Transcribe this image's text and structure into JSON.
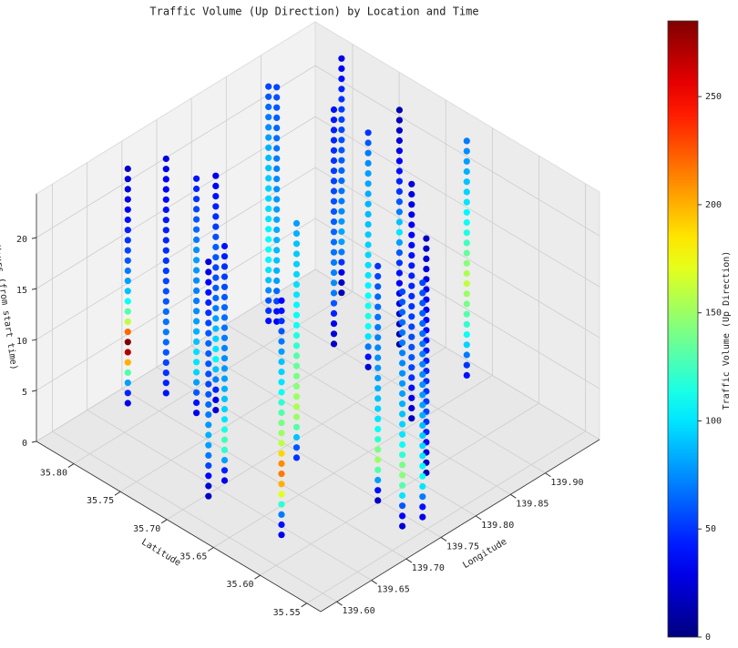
{
  "chart_data": {
    "type": "scatter3d",
    "title": "Traffic Volume (Up Direction) by Location and Time",
    "xlabel": "Longitude",
    "ylabel": "Latitude",
    "zlabel": "Hours (from start time)",
    "xlim": [
      139.577,
      139.978
    ],
    "ylim": [
      35.535,
      35.84
    ],
    "zlim": [
      0,
      24.3
    ],
    "xticks": [
      {
        "value": 139.6,
        "label": "139.60"
      },
      139.65,
      {
        "value": 139.7,
        "label": "139.70"
      },
      139.75,
      {
        "value": 139.8,
        "label": "139.80"
      },
      139.85,
      {
        "value": 139.9,
        "label": "139.90"
      }
    ],
    "yticks": [
      35.55,
      {
        "value": 35.6,
        "label": "35.60"
      },
      35.65,
      {
        "value": 35.7,
        "label": "35.70"
      },
      35.75,
      {
        "value": 35.8,
        "label": "35.80"
      }
    ],
    "zticks": [
      0,
      5,
      10,
      15,
      20
    ],
    "grid": true,
    "hours": [
      0,
      1,
      2,
      3,
      4,
      5,
      6,
      7,
      8,
      9,
      10,
      11,
      12,
      13,
      14,
      15,
      16,
      17,
      18,
      19,
      20,
      21,
      22,
      23
    ],
    "locations": [
      {
        "lon": 139.687,
        "lat": 35.824,
        "values": [
          30,
          45,
          80,
          130,
          200,
          270,
          285,
          220,
          160,
          130,
          110,
          90,
          80,
          70,
          60,
          55,
          50,
          45,
          40,
          35,
          30,
          28,
          25,
          20
        ]
      },
      {
        "lon": 139.726,
        "lat": 35.812,
        "values": [
          40,
          45,
          50,
          55,
          60,
          65,
          70,
          68,
          66,
          60,
          58,
          55,
          52,
          50,
          48,
          46,
          44,
          42,
          40,
          38,
          35,
          33,
          30,
          28
        ]
      },
      {
        "lon": 139.724,
        "lat": 35.778,
        "values": [
          30,
          40,
          60,
          80,
          95,
          100,
          98,
          90,
          85,
          80,
          75,
          70,
          72,
          75,
          78,
          80,
          76,
          70,
          65,
          60,
          55,
          50,
          45,
          40
        ]
      },
      {
        "lon": 139.741,
        "lat": 35.77,
        "values": [
          25,
          30,
          45,
          70,
          90,
          105,
          100,
          95,
          88,
          80,
          70,
          65,
          60,
          58,
          55,
          60,
          62,
          58,
          52,
          48,
          44,
          40,
          35,
          30
        ]
      },
      {
        "lon": 139.634,
        "lat": 35.698,
        "values": [
          20,
          25,
          35,
          55,
          70,
          80,
          85,
          78,
          70,
          65,
          60,
          55,
          58,
          60,
          62,
          64,
          60,
          55,
          50,
          45,
          40,
          35,
          30,
          25
        ]
      },
      {
        "lon": 139.664,
        "lat": 35.703,
        "values": [
          30,
          45,
          80,
          120,
          125,
          115,
          100,
          95,
          90,
          85,
          80,
          78,
          75,
          72,
          70,
          68,
          66,
          64,
          60,
          56,
          52,
          48,
          44,
          40
        ]
      },
      {
        "lon": 139.884,
        "lat": 35.82,
        "values": [
          40,
          50,
          60,
          75,
          90,
          100,
          105,
          110,
          108,
          105,
          100,
          98,
          96,
          94,
          92,
          90,
          88,
          85,
          80,
          75,
          70,
          65,
          60,
          55
        ]
      },
      {
        "lon": 139.889,
        "lat": 35.815,
        "values": [
          35,
          40,
          55,
          65,
          80,
          85,
          90,
          88,
          86,
          84,
          82,
          80,
          78,
          76,
          74,
          72,
          70,
          68,
          66,
          64,
          62,
          60,
          58,
          55
        ]
      },
      {
        "lon": 139.64,
        "lat": 35.624,
        "values": [
          30,
          40,
          70,
          120,
          170,
          200,
          215,
          210,
          190,
          160,
          150,
          140,
          130,
          120,
          110,
          100,
          95,
          90,
          80,
          70,
          60,
          50,
          40,
          35
        ]
      },
      {
        "lon": 139.742,
        "lat": 35.684,
        "values": [
          50,
          60,
          90,
          130,
          150,
          155,
          150,
          145,
          140,
          135,
          130,
          120,
          115,
          110,
          108,
          105,
          100,
          98,
          96,
          94,
          92,
          90,
          85,
          80
        ]
      },
      {
        "lon": 139.903,
        "lat": 35.764,
        "values": [
          20,
          25,
          30,
          45,
          60,
          70,
          75,
          72,
          70,
          68,
          66,
          64,
          62,
          60,
          58,
          56,
          54,
          52,
          50,
          48,
          46,
          44,
          42,
          40
        ]
      },
      {
        "lon": 139.969,
        "lat": 35.805,
        "values": [
          15,
          20,
          30,
          50,
          70,
          80,
          82,
          78,
          74,
          70,
          68,
          66,
          64,
          62,
          60,
          58,
          56,
          54,
          52,
          50,
          45,
          40,
          35,
          30
        ]
      },
      {
        "lon": 139.9,
        "lat": 35.725,
        "values": [
          25,
          40,
          70,
          100,
          110,
          115,
          112,
          108,
          104,
          100,
          98,
          96,
          94,
          92,
          90,
          88,
          86,
          84,
          82,
          80,
          75,
          70,
          60,
          50
        ]
      },
      {
        "lon": 139.749,
        "lat": 35.602,
        "values": [
          20,
          40,
          80,
          130,
          150,
          140,
          120,
          110,
          100,
          95,
          90,
          85,
          80,
          78,
          76,
          74,
          72,
          70,
          68,
          66,
          64,
          60,
          55,
          50
        ]
      },
      {
        "lon": 139.949,
        "lat": 35.728,
        "values": [
          10,
          12,
          15,
          20,
          25,
          30,
          35,
          40,
          50,
          60,
          80,
          100,
          90,
          70,
          60,
          50,
          45,
          40,
          35,
          30,
          25,
          20,
          18,
          15
        ]
      },
      {
        "lon": 139.736,
        "lat": 35.566,
        "values": [
          25,
          35,
          60,
          100,
          130,
          145,
          140,
          120,
          110,
          100,
          95,
          90,
          85,
          80,
          78,
          76,
          74,
          72,
          70,
          68,
          66,
          64,
          60,
          55
        ]
      },
      {
        "lon": 139.87,
        "lat": 35.656,
        "values": [
          20,
          25,
          30,
          40,
          50,
          55,
          60,
          58,
          56,
          54,
          52,
          50,
          48,
          46,
          44,
          42,
          40,
          38,
          36,
          34,
          32,
          30,
          28,
          25
        ]
      },
      {
        "lon": 139.761,
        "lat": 35.563,
        "values": [
          30,
          40,
          70,
          100,
          110,
          105,
          100,
          96,
          92,
          88,
          84,
          80,
          78,
          76,
          74,
          72,
          70,
          68,
          66,
          64,
          62,
          60,
          58,
          55
        ]
      },
      {
        "lon": 139.816,
        "lat": 35.6,
        "values": [
          15,
          20,
          25,
          35,
          45,
          50,
          55,
          52,
          50,
          48,
          46,
          44,
          42,
          40,
          38,
          36,
          34,
          32,
          30,
          28,
          26,
          24,
          22,
          20
        ]
      },
      {
        "lon": 139.96,
        "lat": 35.664,
        "values": [
          40,
          50,
          70,
          95,
          110,
          120,
          130,
          140,
          150,
          160,
          155,
          145,
          135,
          125,
          115,
          110,
          105,
          100,
          95,
          90,
          85,
          80,
          75,
          70
        ]
      }
    ],
    "colorbar": {
      "label": "Traffic Volume (Up Direction)",
      "colormap": "jet",
      "lim": [
        0,
        285
      ],
      "ticks": [
        0,
        50,
        100,
        150,
        200,
        250
      ]
    }
  }
}
